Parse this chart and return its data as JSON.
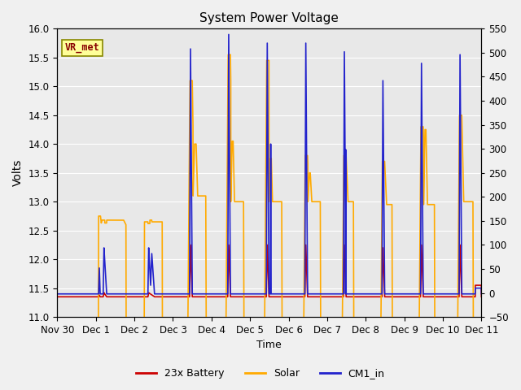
{
  "title": "System Power Voltage",
  "xlabel": "Time",
  "ylabel": "Volts",
  "ylim_left": [
    11.0,
    16.0
  ],
  "ylim_right": [
    -50,
    550
  ],
  "yticks_left": [
    11.0,
    11.5,
    12.0,
    12.5,
    13.0,
    13.5,
    14.0,
    14.5,
    15.0,
    15.5,
    16.0
  ],
  "yticks_right": [
    -50,
    0,
    50,
    100,
    150,
    200,
    250,
    300,
    350,
    400,
    450,
    500,
    550
  ],
  "xtick_labels": [
    "Nov 30",
    "Dec 1",
    "Dec 2",
    "Dec 3",
    "Dec 4",
    "Dec 5",
    "Dec 6",
    "Dec 7",
    "Dec 8",
    "Dec 9",
    "Dec 10",
    "Dec 11"
  ],
  "bg_color": "#e8e8e8",
  "fig_color": "#f0f0f0",
  "grid_color": "#ffffff",
  "battery_color": "#cc0000",
  "solar_color": "#ffaa00",
  "cm1_color": "#2222cc",
  "lw": 1.2,
  "annotation_text": "VR_met",
  "annotation_box_color": "#ffff99",
  "annotation_text_color": "#880000",
  "legend_labels": [
    "23x Battery",
    "Solar",
    "CM1_in"
  ]
}
